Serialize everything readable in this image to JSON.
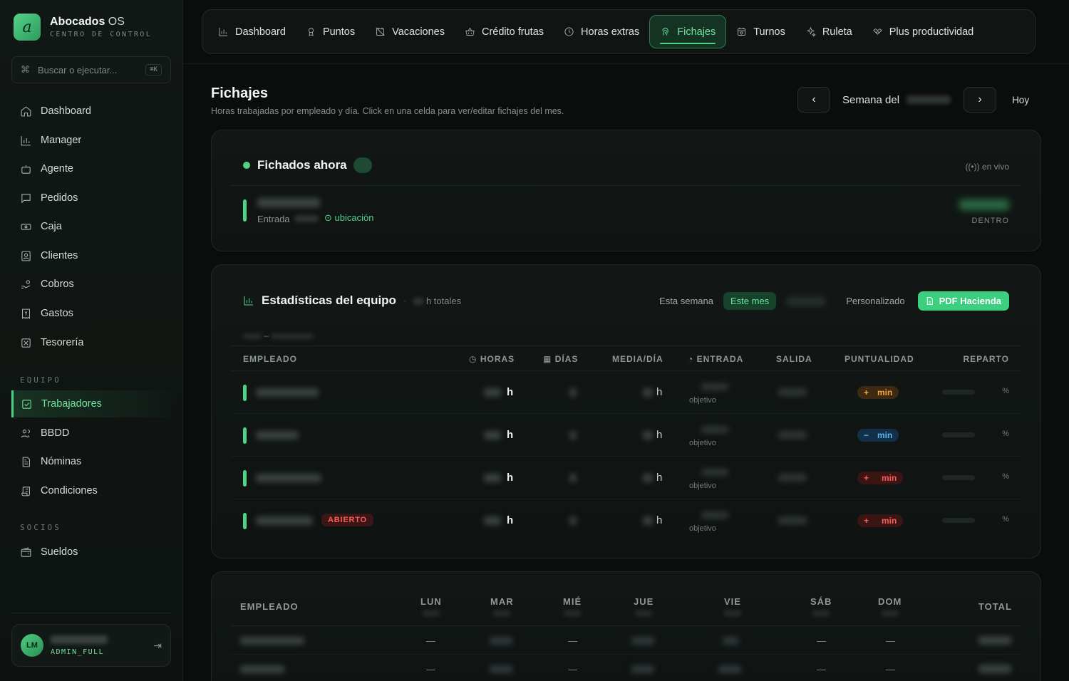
{
  "brand": {
    "name_bold": "Abocados",
    "name_light": " OS",
    "subtitle": "CENTRO DE CONTROL",
    "logo_letter": "a"
  },
  "search": {
    "placeholder": "Buscar o ejecutar...",
    "shortcut": "⌘K"
  },
  "sidebar": {
    "items": [
      {
        "label": "Dashboard",
        "icon": "home-icon"
      },
      {
        "label": "Manager",
        "icon": "bar-chart-icon"
      },
      {
        "label": "Agente",
        "icon": "bot-icon"
      },
      {
        "label": "Pedidos",
        "icon": "message-square-icon"
      },
      {
        "label": "Caja",
        "icon": "cash-icon"
      },
      {
        "label": "Clientes",
        "icon": "contact-icon"
      },
      {
        "label": "Cobros",
        "icon": "hand-coins-icon"
      },
      {
        "label": "Gastos",
        "icon": "receipt-icon"
      },
      {
        "label": "Tesorería",
        "icon": "vault-icon"
      }
    ],
    "equipo_label": "EQUIPO",
    "equipo_items": [
      {
        "label": "Trabajadores",
        "icon": "check-square-icon",
        "active": true
      },
      {
        "label": "BBDD",
        "icon": "users-icon"
      },
      {
        "label": "Nóminas",
        "icon": "file-text-icon"
      },
      {
        "label": "Condiciones",
        "icon": "scroll-icon"
      }
    ],
    "socios_label": "SOCIOS",
    "socios_items": [
      {
        "label": "Sueldos",
        "icon": "wallet-icon"
      }
    ],
    "user": {
      "initials": "LM",
      "role": "ADMIN_FULL"
    }
  },
  "topnav": {
    "tabs": [
      {
        "label": "Dashboard",
        "icon": "bar-chart-icon"
      },
      {
        "label": "Puntos",
        "icon": "award-icon"
      },
      {
        "label": "Vacaciones",
        "icon": "calendar-off-icon"
      },
      {
        "label": "Crédito frutas",
        "icon": "basket-icon"
      },
      {
        "label": "Horas extras",
        "icon": "clock-icon"
      },
      {
        "label": "Fichajes",
        "icon": "fingerprint-icon",
        "active": true
      },
      {
        "label": "Turnos",
        "icon": "calendar-clock-icon"
      },
      {
        "label": "Ruleta",
        "icon": "sparkles-icon"
      },
      {
        "label": "Plus productividad",
        "icon": "handshake-icon"
      }
    ]
  },
  "page": {
    "title": "Fichajes",
    "subtitle": "Horas trabajadas por empleado y día. Click en una celda para ver/editar fichajes del mes.",
    "week_label": "Semana del",
    "today": "Hoy"
  },
  "live": {
    "title": "Fichados ahora",
    "status": "en vivo",
    "entrada_label": "Entrada",
    "location_label": "ubicación",
    "state": "DENTRO"
  },
  "stats": {
    "title": "Estadísticas del equipo",
    "total_suffix": "h totales",
    "ranges": [
      "Esta semana",
      "Este mes",
      "Personalizado"
    ],
    "active_range": "Este mes",
    "pdf_label": "PDF Hacienda",
    "range_sep": "–",
    "columns": [
      "EMPLEADO",
      "HORAS",
      "DÍAS",
      "MEDIA/DÍA",
      "ENTRADA",
      "SALIDA",
      "PUNTUALIDAD",
      "REPARTO"
    ],
    "hour_unit": "h",
    "objective_label": "objetivo",
    "min_label": "min",
    "pct_label": "%",
    "open_badge": "ABIERTO",
    "rows": [
      {
        "punt_sign": "+",
        "punt_color": "orange",
        "reparto": 1.0
      },
      {
        "punt_sign": "−",
        "punt_color": "blue",
        "reparto": 0.58
      },
      {
        "punt_sign": "+",
        "punt_color": "red",
        "reparto": 0.7
      },
      {
        "punt_sign": "+",
        "punt_color": "red",
        "reparto": 0.9,
        "open": true
      }
    ]
  },
  "week_table": {
    "columns": [
      "EMPLEADO",
      "LUN",
      "MAR",
      "MIÉ",
      "JUE",
      "VIE",
      "SÁB",
      "DOM",
      "TOTAL"
    ],
    "empty": "—"
  }
}
